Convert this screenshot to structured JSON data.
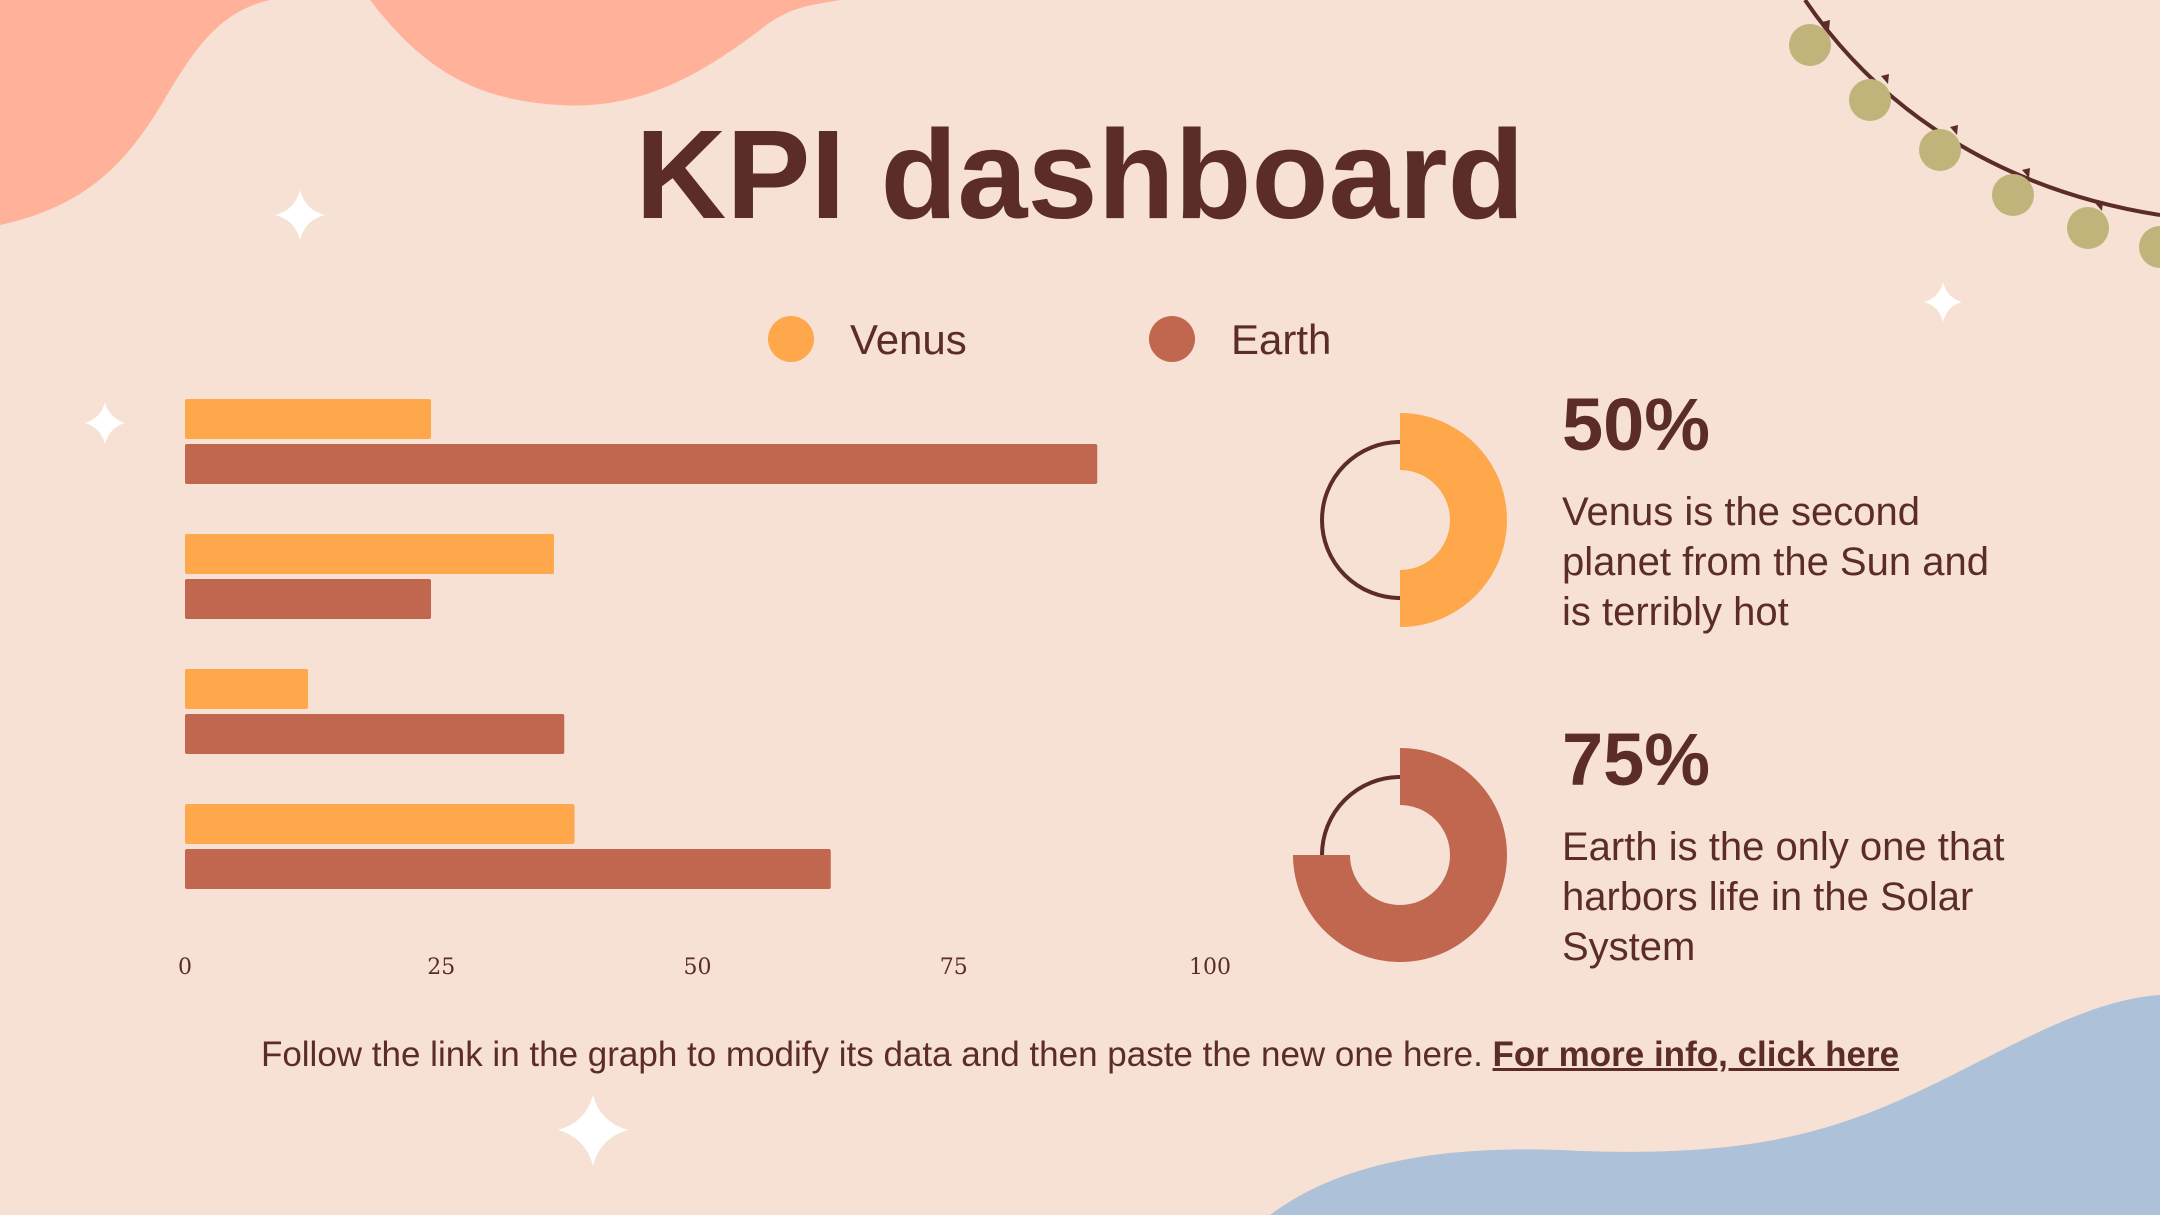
{
  "slide": {
    "title": "KPI dashboard"
  },
  "colors": {
    "background": "#f6e1d4",
    "venus": "#fea74b",
    "earth": "#c1664f",
    "text": "#5b2c28",
    "blob_top": "#ffb199",
    "blob_bottom": "#adc2d8",
    "bulb": "#c0b47a"
  },
  "legend": [
    {
      "label": "Venus",
      "color": "#fea74b"
    },
    {
      "label": "Earth",
      "color": "#c1664f"
    }
  ],
  "chart_data": {
    "type": "bar",
    "orientation": "horizontal",
    "categories": [
      "",
      "",
      "",
      ""
    ],
    "series": [
      {
        "name": "Venus",
        "values": [
          24,
          36,
          12,
          38
        ]
      },
      {
        "name": "Earth",
        "values": [
          89,
          24,
          37,
          63
        ]
      }
    ],
    "xlim": [
      0,
      100
    ],
    "x_ticks": [
      "0",
      "25",
      "50",
      "75",
      "100"
    ],
    "grid": false,
    "legend_position": "top"
  },
  "kpis": [
    {
      "percent": "50%",
      "value": 50,
      "description": "Venus is the second planet from the Sun and is terribly hot",
      "color": "#fea74b"
    },
    {
      "percent": "75%",
      "value": 75,
      "description": "Earth is the only one that harbors life in the Solar System",
      "color": "#c1664f"
    }
  ],
  "footer": {
    "text": "Follow the link in the graph to modify its data and then paste the new one here.",
    "link_text": "For more info, click here"
  }
}
